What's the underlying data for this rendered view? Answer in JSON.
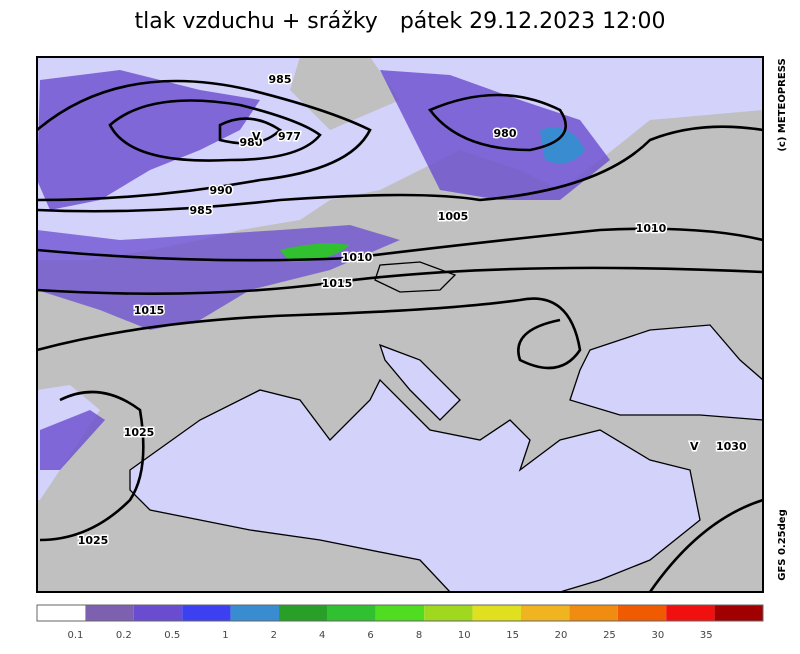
{
  "title": "tlak vzduchu + srážky",
  "subtitle": "pátek 29.12.2023 12:00",
  "credit": "(c) METEOPRESS",
  "model": "GFS 0.25deg",
  "centers": [
    {
      "symbol": "V",
      "value": "977"
    },
    {
      "symbol": "V",
      "value": "1030"
    }
  ],
  "isobar_labels": [
    "985",
    "980",
    "990",
    "985",
    "1005",
    "980",
    "1010",
    "1010",
    "1015",
    "1015",
    "1025",
    "1025"
  ],
  "legend": {
    "colors": [
      "#ffffff",
      "#7d60b0",
      "#6a4cd0",
      "#3c40f0",
      "#3a8cd0",
      "#28a028",
      "#30c030",
      "#50dc20",
      "#a0d820",
      "#e0e020",
      "#f0b420",
      "#f08c10",
      "#f05a00",
      "#f01010",
      "#a00000"
    ],
    "ticks": [
      "0.1",
      "0.2",
      "0.5",
      "1",
      "2",
      "4",
      "6",
      "8",
      "10",
      "15",
      "20",
      "25",
      "30",
      "35"
    ]
  }
}
